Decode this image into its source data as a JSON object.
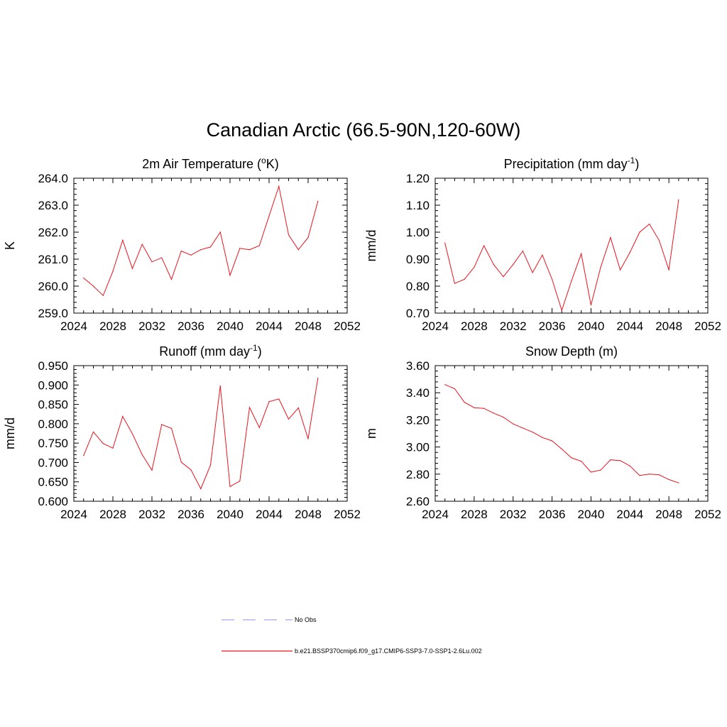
{
  "page_title": "Canadian Arctic (66.5-90N,120-60W)",
  "colors": {
    "model_line": "#e8141e",
    "obs_line": "#a9a3e8",
    "frame": "#000000"
  },
  "legend": [
    {
      "label": "No Obs",
      "style": "dashed",
      "color": "#a9a3e8"
    },
    {
      "label": "b.e21.BSSP370cmip6.f09_g17.CMIP6-SSP3-7.0-SSP1-2.6Lu.002",
      "style": "solid",
      "color": "#e8141e"
    }
  ],
  "chart_data": [
    {
      "type": "line",
      "title": "2m Air Temperature (",
      "title_sup": "o",
      "title_tail": "K)",
      "ylabel": "K",
      "xlim": [
        2024,
        2052
      ],
      "ylim": [
        259.0,
        264.0
      ],
      "xticks": [
        2024,
        2028,
        2032,
        2036,
        2040,
        2044,
        2048,
        2052
      ],
      "yticks": [
        "259.0",
        "260.0",
        "261.0",
        "262.0",
        "263.0",
        "264.0"
      ],
      "x": [
        2025,
        2026,
        2027,
        2028,
        2029,
        2030,
        2031,
        2032,
        2033,
        2034,
        2035,
        2036,
        2037,
        2038,
        2039,
        2040,
        2041,
        2042,
        2043,
        2044,
        2045,
        2046,
        2047,
        2048,
        2049
      ],
      "series": [
        {
          "values": [
            260.3,
            260.0,
            259.65,
            260.55,
            261.7,
            260.65,
            261.55,
            260.9,
            261.05,
            260.25,
            261.3,
            261.15,
            261.35,
            261.45,
            262.0,
            260.4,
            261.4,
            261.35,
            261.5,
            262.6,
            263.7,
            261.9,
            261.35,
            261.8,
            263.15
          ]
        }
      ]
    },
    {
      "type": "line",
      "title": "Precipitation (mm day",
      "title_sup": "-1",
      "title_tail": ")",
      "ylabel": "mm/d",
      "xlim": [
        2024,
        2052
      ],
      "ylim": [
        0.7,
        1.2
      ],
      "xticks": [
        2024,
        2028,
        2032,
        2036,
        2040,
        2044,
        2048,
        2052
      ],
      "yticks": [
        "0.70",
        "0.80",
        "0.90",
        "1.00",
        "1.10",
        "1.20"
      ],
      "x": [
        2025,
        2026,
        2027,
        2028,
        2029,
        2030,
        2031,
        2032,
        2033,
        2034,
        2035,
        2036,
        2037,
        2038,
        2039,
        2040,
        2041,
        2042,
        2043,
        2044,
        2045,
        2046,
        2047,
        2048,
        2049
      ],
      "series": [
        {
          "values": [
            0.96,
            0.81,
            0.825,
            0.87,
            0.95,
            0.88,
            0.835,
            0.88,
            0.93,
            0.85,
            0.915,
            0.825,
            0.71,
            0.82,
            0.92,
            0.73,
            0.87,
            0.98,
            0.86,
            0.925,
            1.0,
            1.03,
            0.97,
            0.86,
            1.12
          ]
        }
      ]
    },
    {
      "type": "line",
      "title": "Runoff (mm day",
      "title_sup": "-1",
      "title_tail": ")",
      "ylabel": "mm/d",
      "xlim": [
        2024,
        2052
      ],
      "ylim": [
        0.6,
        0.95
      ],
      "xticks": [
        2024,
        2028,
        2032,
        2036,
        2040,
        2044,
        2048,
        2052
      ],
      "yticks": [
        "0.600",
        "0.650",
        "0.700",
        "0.750",
        "0.800",
        "0.850",
        "0.900",
        "0.950"
      ],
      "x": [
        2025,
        2026,
        2027,
        2028,
        2029,
        2030,
        2031,
        2032,
        2033,
        2034,
        2035,
        2036,
        2037,
        2038,
        2039,
        2040,
        2041,
        2042,
        2043,
        2044,
        2045,
        2046,
        2047,
        2048,
        2049
      ],
      "series": [
        {
          "values": [
            0.718,
            0.779,
            0.749,
            0.737,
            0.819,
            0.774,
            0.72,
            0.68,
            0.798,
            0.788,
            0.701,
            0.681,
            0.632,
            0.693,
            0.898,
            0.638,
            0.652,
            0.842,
            0.79,
            0.857,
            0.864,
            0.812,
            0.841,
            0.761,
            0.918
          ]
        }
      ]
    },
    {
      "type": "line",
      "title": "Snow Depth (m)",
      "title_sup": "",
      "title_tail": "",
      "ylabel": "m",
      "xlim": [
        2024,
        2052
      ],
      "ylim": [
        2.6,
        3.6
      ],
      "xticks": [
        2024,
        2028,
        2032,
        2036,
        2040,
        2044,
        2048,
        2052
      ],
      "yticks": [
        "2.60",
        "2.80",
        "3.00",
        "3.20",
        "3.40",
        "3.60"
      ],
      "x": [
        2025,
        2026,
        2027,
        2028,
        2029,
        2030,
        2031,
        2032,
        2033,
        2034,
        2035,
        2036,
        2037,
        2038,
        2039,
        2040,
        2041,
        2042,
        2043,
        2044,
        2045,
        2046,
        2047,
        2048,
        2049
      ],
      "series": [
        {
          "values": [
            3.46,
            3.43,
            3.33,
            3.29,
            3.285,
            3.25,
            3.22,
            3.17,
            3.14,
            3.11,
            3.07,
            3.045,
            2.985,
            2.92,
            2.895,
            2.815,
            2.83,
            2.905,
            2.9,
            2.86,
            2.79,
            2.8,
            2.795,
            2.76,
            2.735
          ]
        }
      ]
    }
  ]
}
